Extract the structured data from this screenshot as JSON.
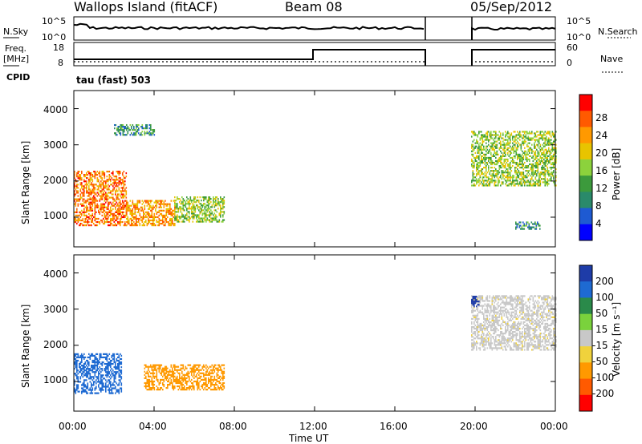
{
  "header": {
    "station": "Wallops Island (fitACF)",
    "beam": "Beam 08",
    "date": "05/Sep/2012"
  },
  "top_panels": {
    "nsky_label": "N.Sky",
    "nsky_ticks": [
      "10^5",
      "10^0"
    ],
    "nsearch_label": "N.Search",
    "nsearch_ticks": [
      "10^5",
      "10^0"
    ],
    "freq_label": "Freq.",
    "freq_unit": "[MHz]",
    "freq_ticks": [
      "18",
      "8"
    ],
    "nave_label": "Nave",
    "nave_ticks": [
      "60",
      "0"
    ],
    "cpid_label": "CPID",
    "cpid_value": "tau (fast) 503"
  },
  "x_axis": {
    "ticks": [
      "00:00",
      "04:00",
      "08:00",
      "12:00",
      "16:00",
      "20:00",
      "00:00"
    ],
    "label": "Time UT"
  },
  "power_panel": {
    "y_label": "Slant Range [km]",
    "y_ticks": [
      "4000",
      "3000",
      "2000",
      "1000"
    ],
    "colorbar_label": "Power [dB]",
    "colorbar_ticks": [
      "28",
      "24",
      "20",
      "16",
      "12",
      "8",
      "4"
    ],
    "colors": [
      "#ff0000",
      "#ff5a00",
      "#ff9900",
      "#e8c400",
      "#8cd23c",
      "#3c9a3c",
      "#2a8a6a",
      "#1e5ad2",
      "#0000ff"
    ]
  },
  "velocity_panel": {
    "y_label": "Slant Range [km]",
    "y_ticks": [
      "4000",
      "3000",
      "2000",
      "1000"
    ],
    "colorbar_label": "Velocity [m s⁻¹]",
    "colorbar_ticks": [
      "200",
      "100",
      "50",
      "15",
      "-15",
      "-50",
      "-100",
      "-200"
    ],
    "colors": [
      "#1e3ca8",
      "#1e6ad2",
      "#2a8a4a",
      "#7ad23c",
      "#c8c8c8",
      "#f0d23c",
      "#ff9900",
      "#ff5a00",
      "#ff0000"
    ]
  },
  "chart_data": {
    "type": "heatmap",
    "title": "Wallops Island (fitACF) Beam 08 05/Sep/2012",
    "xlabel": "Time UT",
    "ylabel": "Slant Range [km]",
    "xlim_hours": [
      0,
      24
    ],
    "ylim_km": [
      180,
      4500
    ],
    "data_gap_hours": [
      17.5,
      19.8
    ],
    "frequency_MHz": [
      {
        "from_hour": 0,
        "to_hour": 12,
        "value": 10
      },
      {
        "from_hour": 12,
        "to_hour": 17.5,
        "value": 16
      },
      {
        "from_hour": 19.8,
        "to_hour": 24,
        "value": 16
      }
    ],
    "power_features": [
      {
        "t_start": 0.0,
        "t_end": 2.6,
        "range_start_km": 800,
        "range_end_km": 2300,
        "power_dB": 24
      },
      {
        "t_start": 2.6,
        "t_end": 5.0,
        "range_start_km": 800,
        "range_end_km": 1500,
        "power_dB": 22
      },
      {
        "t_start": 5.0,
        "t_end": 7.5,
        "range_start_km": 900,
        "range_end_km": 1600,
        "power_dB": 14
      },
      {
        "t_start": 2.0,
        "t_end": 4.0,
        "range_start_km": 3300,
        "range_end_km": 3600,
        "power_dB": 8
      },
      {
        "t_start": 19.8,
        "t_end": 24.0,
        "range_start_km": 1900,
        "range_end_km": 3400,
        "power_dB": 14
      },
      {
        "t_start": 22.0,
        "t_end": 23.2,
        "range_start_km": 700,
        "range_end_km": 900,
        "power_dB": 8
      }
    ],
    "velocity_features": [
      {
        "t_start": 0.0,
        "t_end": 2.4,
        "range_start_km": 700,
        "range_end_km": 1800,
        "velocity": 150
      },
      {
        "t_start": 3.5,
        "t_end": 7.5,
        "range_start_km": 800,
        "range_end_km": 1500,
        "velocity": -80
      },
      {
        "t_start": 19.8,
        "t_end": 24.0,
        "range_start_km": 1900,
        "range_end_km": 3400,
        "velocity": -10
      },
      {
        "t_start": 19.8,
        "t_end": 20.2,
        "range_start_km": 3100,
        "range_end_km": 3400,
        "velocity": 220
      }
    ]
  }
}
